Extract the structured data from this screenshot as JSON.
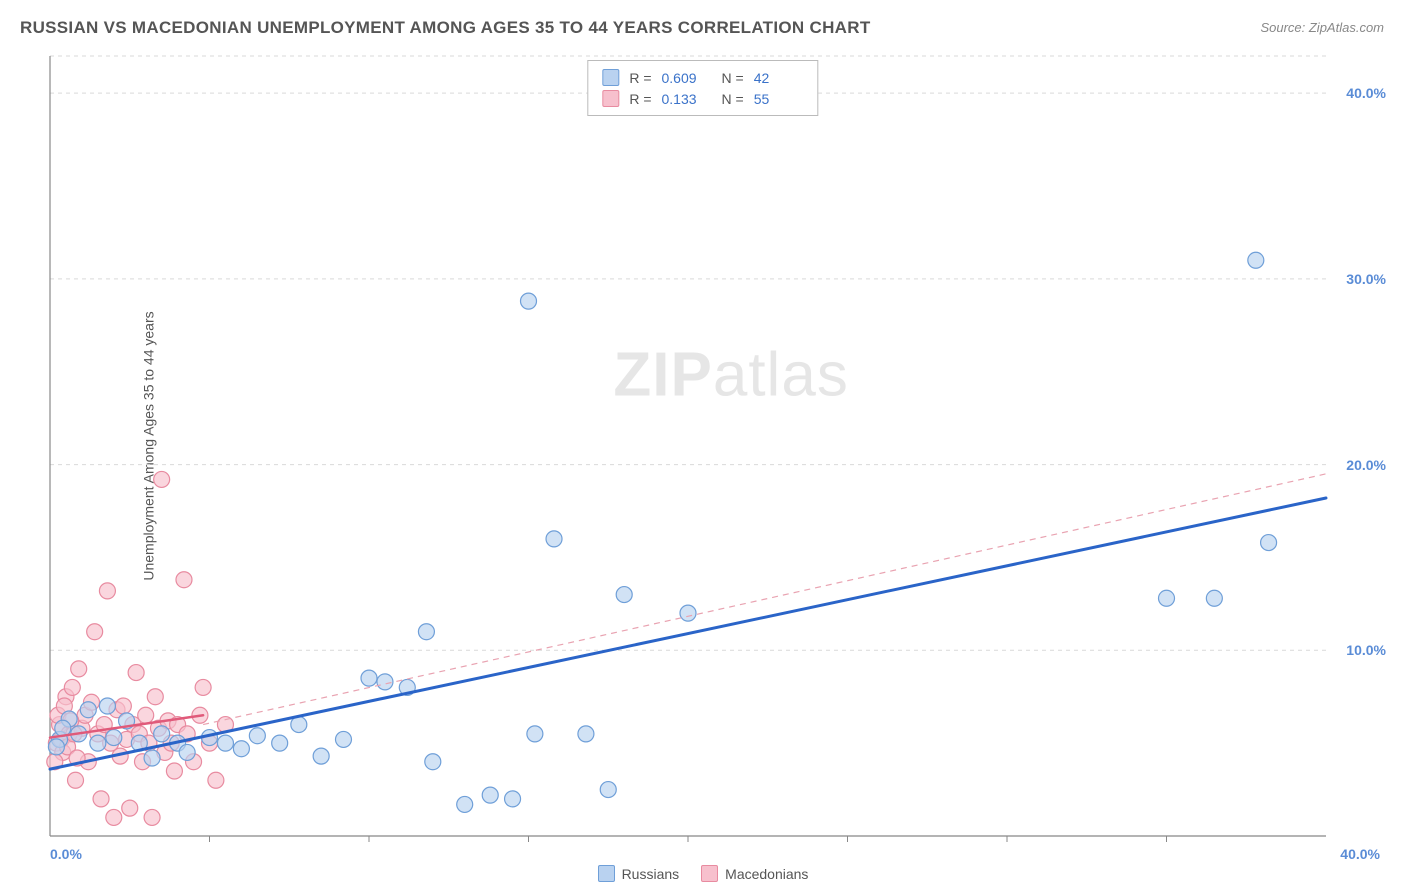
{
  "title": "RUSSIAN VS MACEDONIAN UNEMPLOYMENT AMONG AGES 35 TO 44 YEARS CORRELATION CHART",
  "source": "Source: ZipAtlas.com",
  "y_axis_label": "Unemployment Among Ages 35 to 44 years",
  "watermark_bold": "ZIP",
  "watermark_light": "atlas",
  "chart": {
    "type": "scatter",
    "xlim": [
      0,
      40
    ],
    "ylim": [
      0,
      42
    ],
    "x_min_label": "0.0%",
    "x_max_label": "40.0%",
    "y_ticks": [
      10,
      20,
      30,
      40
    ],
    "y_tick_labels": [
      "10.0%",
      "20.0%",
      "30.0%",
      "40.0%"
    ],
    "x_minor_ticks": [
      5,
      10,
      15,
      20,
      25,
      30,
      35
    ],
    "grid_color": "#d9d9d9",
    "axis_color": "#888888",
    "background_color": "#ffffff",
    "marker_radius": 8,
    "marker_stroke_width": 1.2,
    "series": [
      {
        "name": "Russians",
        "fill": "#b9d2f0",
        "stroke": "#6f9fd8",
        "fill_opacity": 0.65,
        "points": [
          [
            0.3,
            5.2
          ],
          [
            0.6,
            6.3
          ],
          [
            0.9,
            5.5
          ],
          [
            1.2,
            6.8
          ],
          [
            1.5,
            5.0
          ],
          [
            1.8,
            7.0
          ],
          [
            2.0,
            5.3
          ],
          [
            2.4,
            6.2
          ],
          [
            2.8,
            5.0
          ],
          [
            3.2,
            4.2
          ],
          [
            3.5,
            5.5
          ],
          [
            4.0,
            5.0
          ],
          [
            4.3,
            4.5
          ],
          [
            5.0,
            5.3
          ],
          [
            5.5,
            5.0
          ],
          [
            6.0,
            4.7
          ],
          [
            6.5,
            5.4
          ],
          [
            7.2,
            5.0
          ],
          [
            7.8,
            6.0
          ],
          [
            8.5,
            4.3
          ],
          [
            9.2,
            5.2
          ],
          [
            10.0,
            8.5
          ],
          [
            10.5,
            8.3
          ],
          [
            11.2,
            8.0
          ],
          [
            11.8,
            11.0
          ],
          [
            12.0,
            4.0
          ],
          [
            13.0,
            1.7
          ],
          [
            13.8,
            2.2
          ],
          [
            14.5,
            2.0
          ],
          [
            15.0,
            28.8
          ],
          [
            15.2,
            5.5
          ],
          [
            15.8,
            16.0
          ],
          [
            16.8,
            5.5
          ],
          [
            17.5,
            2.5
          ],
          [
            18.0,
            13.0
          ],
          [
            20.0,
            12.0
          ],
          [
            35.0,
            12.8
          ],
          [
            36.5,
            12.8
          ],
          [
            38.2,
            15.8
          ],
          [
            37.8,
            31.0
          ],
          [
            0.2,
            4.8
          ],
          [
            0.4,
            5.8
          ]
        ],
        "trend_solid": {
          "x1": 0,
          "y1": 3.6,
          "x2": 40,
          "y2": 18.2,
          "color": "#2a64c8",
          "width": 3
        },
        "trend_dash": {
          "x1": 4.8,
          "y1": 6.0,
          "x2": 40,
          "y2": 19.5,
          "color": "#e9a3b1",
          "width": 1.2
        }
      },
      {
        "name": "Macedonians",
        "fill": "#f7c0cd",
        "stroke": "#e88ba0",
        "fill_opacity": 0.65,
        "points": [
          [
            0.2,
            5.0
          ],
          [
            0.3,
            6.0
          ],
          [
            0.4,
            4.5
          ],
          [
            0.5,
            7.5
          ],
          [
            0.6,
            5.5
          ],
          [
            0.7,
            8.0
          ],
          [
            0.8,
            3.0
          ],
          [
            0.9,
            9.0
          ],
          [
            1.0,
            5.8
          ],
          [
            1.1,
            6.5
          ],
          [
            1.2,
            4.0
          ],
          [
            1.3,
            7.2
          ],
          [
            1.4,
            11.0
          ],
          [
            1.5,
            5.5
          ],
          [
            1.6,
            2.0
          ],
          [
            1.7,
            6.0
          ],
          [
            1.8,
            13.2
          ],
          [
            1.9,
            5.0
          ],
          [
            2.0,
            1.0
          ],
          [
            2.1,
            6.8
          ],
          [
            2.2,
            4.3
          ],
          [
            2.3,
            7.0
          ],
          [
            2.4,
            5.2
          ],
          [
            2.5,
            1.5
          ],
          [
            2.6,
            6.0
          ],
          [
            2.7,
            8.8
          ],
          [
            2.8,
            5.5
          ],
          [
            2.9,
            4.0
          ],
          [
            3.0,
            6.5
          ],
          [
            3.1,
            5.0
          ],
          [
            3.2,
            1.0
          ],
          [
            3.3,
            7.5
          ],
          [
            3.4,
            5.8
          ],
          [
            3.5,
            19.2
          ],
          [
            3.6,
            4.5
          ],
          [
            3.7,
            6.2
          ],
          [
            3.8,
            5.0
          ],
          [
            3.9,
            3.5
          ],
          [
            4.0,
            6.0
          ],
          [
            4.2,
            13.8
          ],
          [
            4.3,
            5.5
          ],
          [
            4.5,
            4.0
          ],
          [
            4.7,
            6.5
          ],
          [
            4.8,
            8.0
          ],
          [
            5.0,
            5.0
          ],
          [
            5.2,
            3.0
          ],
          [
            5.5,
            6.0
          ],
          [
            0.15,
            4.0
          ],
          [
            0.25,
            6.5
          ],
          [
            0.35,
            5.2
          ],
          [
            0.45,
            7.0
          ],
          [
            0.55,
            4.8
          ],
          [
            0.65,
            6.2
          ],
          [
            0.75,
            5.5
          ],
          [
            0.85,
            4.2
          ]
        ],
        "trend_solid": {
          "x1": 0,
          "y1": 5.3,
          "x2": 4.8,
          "y2": 6.5,
          "color": "#e05a7a",
          "width": 2.5
        }
      }
    ]
  },
  "stats": [
    {
      "swatch_fill": "#b9d2f0",
      "swatch_stroke": "#6f9fd8",
      "r": "0.609",
      "n": "42"
    },
    {
      "swatch_fill": "#f7c0cd",
      "swatch_stroke": "#e88ba0",
      "r": "0.133",
      "n": "55"
    }
  ],
  "legend": [
    {
      "label": "Russians",
      "swatch_fill": "#b9d2f0",
      "swatch_stroke": "#6f9fd8"
    },
    {
      "label": "Macedonians",
      "swatch_fill": "#f7c0cd",
      "swatch_stroke": "#e88ba0"
    }
  ],
  "labels": {
    "r_prefix": "R =",
    "n_prefix": "N ="
  }
}
